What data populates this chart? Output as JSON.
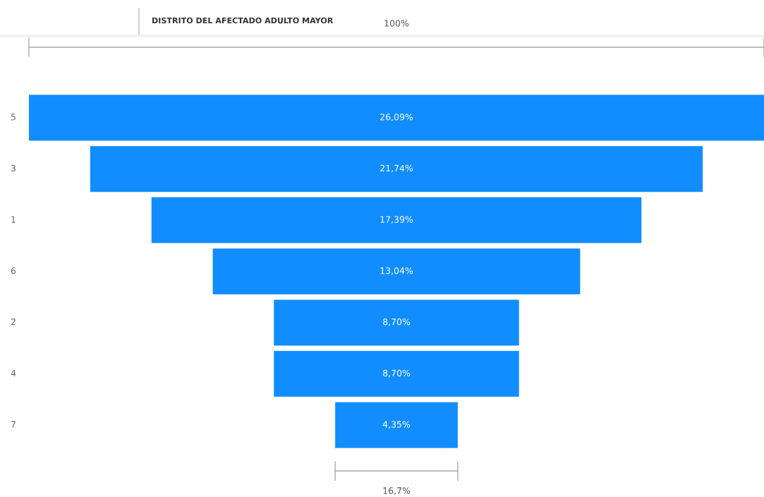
{
  "chart_data": {
    "type": "other",
    "title": "DISTRITO DEL AFECTADO ADULTO MAYOR",
    "categories": [
      "5",
      "3",
      "1",
      "6",
      "2",
      "4",
      "7"
    ],
    "values": [
      26.09,
      21.74,
      17.39,
      13.04,
      8.7,
      8.7,
      4.35
    ],
    "value_labels": [
      "26,09%",
      "21,74%",
      "17,39%",
      "13,04%",
      "8,70%",
      "8,70%",
      "4,35%"
    ],
    "color": "#118dff",
    "annotations": [
      "100%",
      "16,7%"
    ]
  }
}
